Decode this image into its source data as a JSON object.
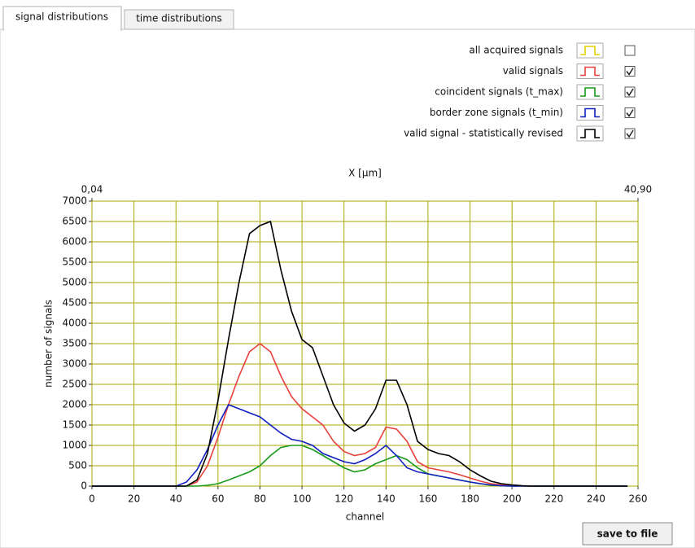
{
  "tabs": [
    "signal distributions",
    "time distributions"
  ],
  "button": "save to file",
  "chart_data": {
    "type": "line",
    "x_label": "channel",
    "y_label": "number of signals",
    "x2_label": "X [µm]",
    "xlim": [
      0,
      260
    ],
    "xticks": [
      0,
      20,
      40,
      60,
      80,
      100,
      120,
      140,
      160,
      180,
      200,
      220,
      240,
      260
    ],
    "ylim": [
      0,
      7000
    ],
    "yticks": [
      0,
      500,
      1000,
      1500,
      2000,
      2500,
      3000,
      3500,
      4000,
      4500,
      5000,
      5500,
      6000,
      6500,
      7000
    ],
    "x2lim": [
      0.04,
      40.9
    ],
    "x2ticks": [
      {
        "value": 0.04,
        "label": "0,04"
      },
      {
        "value": 40.9,
        "label": "40,90"
      }
    ],
    "grid": true,
    "x": [
      0,
      10,
      20,
      30,
      40,
      45,
      50,
      55,
      60,
      65,
      70,
      75,
      80,
      85,
      90,
      95,
      100,
      105,
      110,
      115,
      120,
      125,
      130,
      135,
      140,
      145,
      150,
      155,
      160,
      165,
      170,
      175,
      180,
      185,
      190,
      195,
      200,
      205,
      210,
      220,
      230,
      240,
      250,
      255
    ],
    "series": [
      {
        "name": "all acquired signals",
        "color": "#e0d000",
        "checked": false
      },
      {
        "name": "valid signals",
        "color": "#e8413c",
        "checked": true,
        "values": [
          0,
          0,
          0,
          0,
          0,
          0,
          100,
          500,
          1200,
          2000,
          2700,
          3300,
          3500,
          3300,
          2700,
          2200,
          1900,
          1700,
          1500,
          1100,
          850,
          750,
          800,
          950,
          1450,
          1400,
          1100,
          600,
          450,
          400,
          350,
          280,
          200,
          120,
          60,
          30,
          10,
          0,
          0,
          0,
          0,
          0,
          0,
          0
        ]
      },
      {
        "name": "coincident signals (t_max)",
        "color": "#1a9a1a",
        "checked": true,
        "values": [
          0,
          0,
          0,
          0,
          0,
          0,
          0,
          20,
          60,
          150,
          250,
          350,
          500,
          750,
          950,
          1000,
          1000,
          900,
          750,
          600,
          450,
          350,
          400,
          550,
          650,
          750,
          650,
          450,
          300,
          250,
          200,
          150,
          100,
          60,
          20,
          5,
          0,
          0,
          0,
          0,
          0,
          0,
          0,
          0
        ]
      },
      {
        "name": "border zone signals (t_min)",
        "color": "#1020c0",
        "checked": true,
        "values": [
          0,
          0,
          0,
          0,
          0,
          100,
          400,
          900,
          1500,
          2000,
          1900,
          1800,
          1700,
          1500,
          1300,
          1150,
          1100,
          1000,
          800,
          700,
          600,
          550,
          650,
          800,
          1000,
          750,
          450,
          350,
          300,
          250,
          200,
          150,
          100,
          60,
          30,
          10,
          0,
          0,
          0,
          0,
          0,
          0,
          0,
          0
        ]
      },
      {
        "name": "valid signal - statistically revised",
        "color": "#000000",
        "checked": true,
        "values": [
          0,
          0,
          0,
          0,
          0,
          0,
          150,
          800,
          2100,
          3600,
          5000,
          6200,
          6400,
          6500,
          5300,
          4300,
          3600,
          3400,
          2700,
          2000,
          1550,
          1350,
          1500,
          1900,
          2600,
          2600,
          2000,
          1100,
          900,
          800,
          750,
          600,
          400,
          250,
          120,
          60,
          30,
          10,
          0,
          0,
          0,
          0,
          0,
          0
        ]
      }
    ]
  }
}
